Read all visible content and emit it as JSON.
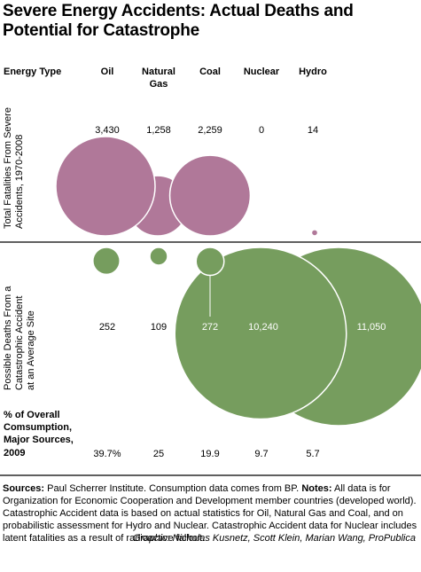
{
  "title": {
    "line1": "Severe Energy Accidents: Actual Deaths and",
    "line2": "Potential for Catastrophe"
  },
  "colors": {
    "fatalities": "#b07899",
    "catastrophe": "#769d5e",
    "divider": "#000000"
  },
  "chart_data": {
    "type": "bubble",
    "header_label": "Energy Type",
    "categories": [
      "Oil",
      "Natural Gas",
      "Coal",
      "Nuclear",
      "Hydro"
    ],
    "series": [
      {
        "name": "Total Fatalities From Severe Accidents, 1970-2008",
        "labels": [
          "3,430",
          "1,258",
          "2,259",
          "0",
          "14"
        ],
        "values": [
          3430,
          1258,
          2259,
          0,
          14
        ]
      },
      {
        "name": "Possible Deaths From a Catastrophic Accident at an Average Site",
        "labels": [
          "252",
          "109",
          "272",
          "10,240",
          "11,050"
        ],
        "values": [
          252,
          109,
          272,
          10240,
          11050
        ]
      }
    ],
    "consumption": {
      "label_lines": [
        "% of Overall",
        "Comsumption,",
        "Major Sources,",
        "2009"
      ],
      "labels": [
        "39.7%",
        "25",
        "19.9",
        "9.7",
        "5.7"
      ],
      "values": [
        39.7,
        25,
        19.9,
        9.7,
        5.7
      ]
    }
  },
  "footer": {
    "sources_label": "Sources:",
    "sources_text": "Paul Scherrer Institute. Consumption data comes from BP.",
    "notes_label": "Notes:",
    "notes_text": "All data is for Organization for Economic Cooperation and Development member countries (developed world). Catastrophic Accident data is based on actual statistics for Oil, Natural Gas and Coal, and on probabilistic assessment for Hydro and Nuclear. Catastrophic Accident data for Nuclear includes latent fatalities as a result of radioactive fallout.",
    "credit": "Graphic: Nicholas Kusnetz, Scott Klein, Marian Wang, ProPublica"
  }
}
